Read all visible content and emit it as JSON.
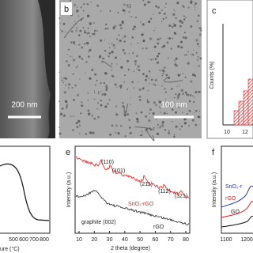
{
  "panels": {
    "a": {
      "scale_bar": "200 nm"
    },
    "b": {
      "label": "b",
      "scale_bar": "100 nm"
    },
    "c": {
      "label": "c",
      "y_label": "Counts (%)",
      "x_ticks": [
        10,
        12
      ]
    },
    "d": {
      "x_ticks": [
        500,
        600,
        700,
        800
      ],
      "x_label": "ure (°C)"
    },
    "e": {
      "label": "e",
      "y_label": "Intensity (a.u.)",
      "x_label": "2 theta (degree)",
      "x_ticks": [
        10,
        20,
        30,
        40,
        50,
        60,
        70,
        80
      ],
      "peaks": [
        "(110)",
        "(101)",
        "(211)",
        "(112)",
        "(321)"
      ],
      "legend": [
        "SnO₂-rGO",
        "graphite (002)",
        "rGO"
      ]
    },
    "f": {
      "label": "f",
      "y_label": "Intensity (a.u.)",
      "x_ticks": [
        1100,
        1200
      ],
      "legend": [
        "SnO₂-r",
        "rGO",
        "GO"
      ]
    }
  }
}
